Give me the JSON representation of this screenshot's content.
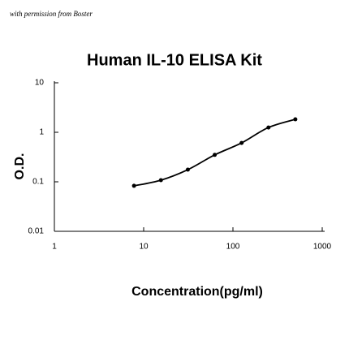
{
  "chart_data": {
    "type": "line",
    "title": "Human IL-10 ELISA Kit",
    "note": "with permission from Boster",
    "x_label": "Concentration(pg/ml)",
    "y_label": "O.D.",
    "xlim": [
      1,
      1000
    ],
    "ylim": [
      0.01,
      10
    ],
    "xticks": [
      1,
      10,
      100,
      1000
    ],
    "yticks": [
      0.01,
      0.1,
      1,
      10
    ],
    "log_x": true,
    "log_y": true,
    "series": [
      {
        "color": "#000000",
        "x": [
          7.8,
          15.6,
          31.25,
          62.5,
          125,
          250,
          500
        ],
        "values": [
          0.083,
          0.108,
          0.176,
          0.35,
          0.61,
          1.25,
          1.83
        ]
      }
    ]
  }
}
